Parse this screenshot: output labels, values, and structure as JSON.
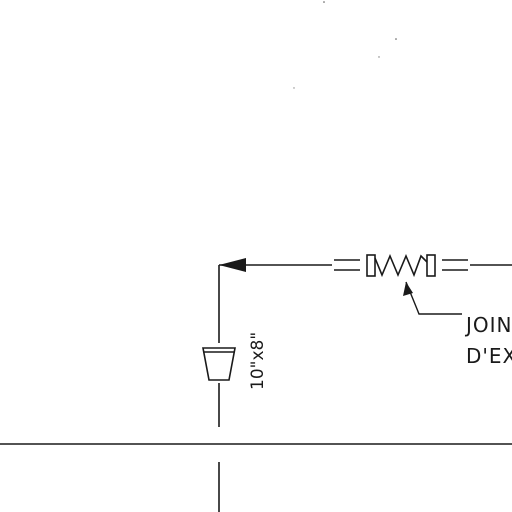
{
  "drawing": {
    "ink_color": "#1a1a1a",
    "background_color": "#ffffff",
    "duct_size_label": "10\"x8\"",
    "callout_line1": "JOIN",
    "callout_line2": "D'EX"
  }
}
